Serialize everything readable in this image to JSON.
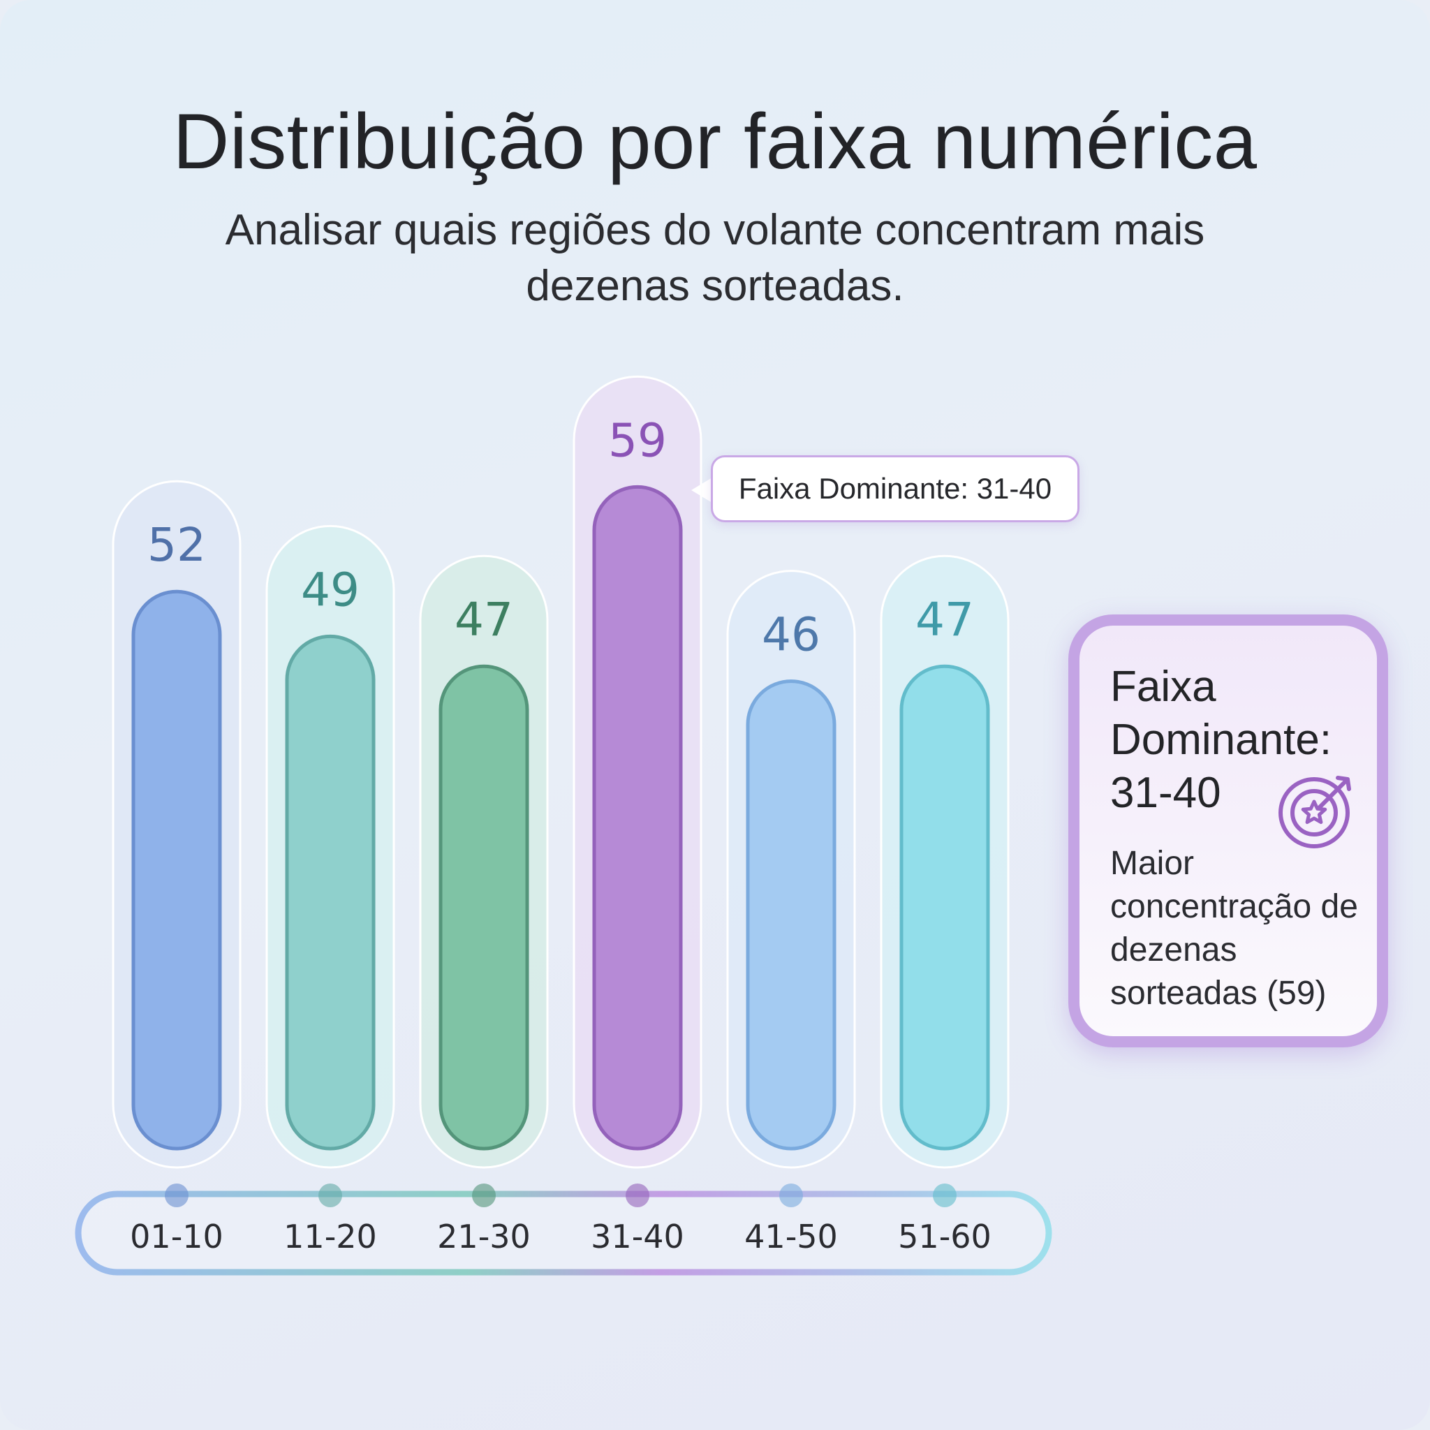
{
  "title": "Distribuição por faixa numérica",
  "subtitle": "Analisar quais regiões do volante concentram mais dezenas sorteadas.",
  "tooltip": {
    "text": "Faixa Dominante: 31-40"
  },
  "info_card": {
    "title": "Faixa Dominante: 31-40",
    "description": "Maior concentração de dezenas sorteadas (59)",
    "icon": "target-star-icon"
  },
  "chart_data": {
    "type": "bar",
    "categories": [
      "01-10",
      "11-20",
      "21-30",
      "31-40",
      "41-50",
      "51-60"
    ],
    "values": [
      52,
      49,
      47,
      59,
      46,
      47
    ],
    "title": "Distribuição por faixa numérica",
    "xlabel": "",
    "ylabel": "",
    "grid": false,
    "highlight": "31-40",
    "colors": [
      {
        "fill": "#8fb2ea",
        "border": "#6a8fd0",
        "halo": "#dde6f6",
        "text": "#4f70a8"
      },
      {
        "fill": "#8fd0cc",
        "border": "#62aaa6",
        "halo": "#d6f0f0",
        "text": "#3d8c86"
      },
      {
        "fill": "#7fc3a5",
        "border": "#54957a",
        "halo": "#d4ece4",
        "text": "#3d7f60"
      },
      {
        "fill": "#b68ad6",
        "border": "#9462bb",
        "halo": "#eadcf4",
        "text": "#8a52b5"
      },
      {
        "fill": "#a4cbf2",
        "border": "#7aaade",
        "halo": "#dde9f8",
        "text": "#4e78aa"
      },
      {
        "fill": "#92deea",
        "border": "#62bccb",
        "halo": "#d5f0f5",
        "text": "#3f9aa8"
      }
    ]
  }
}
